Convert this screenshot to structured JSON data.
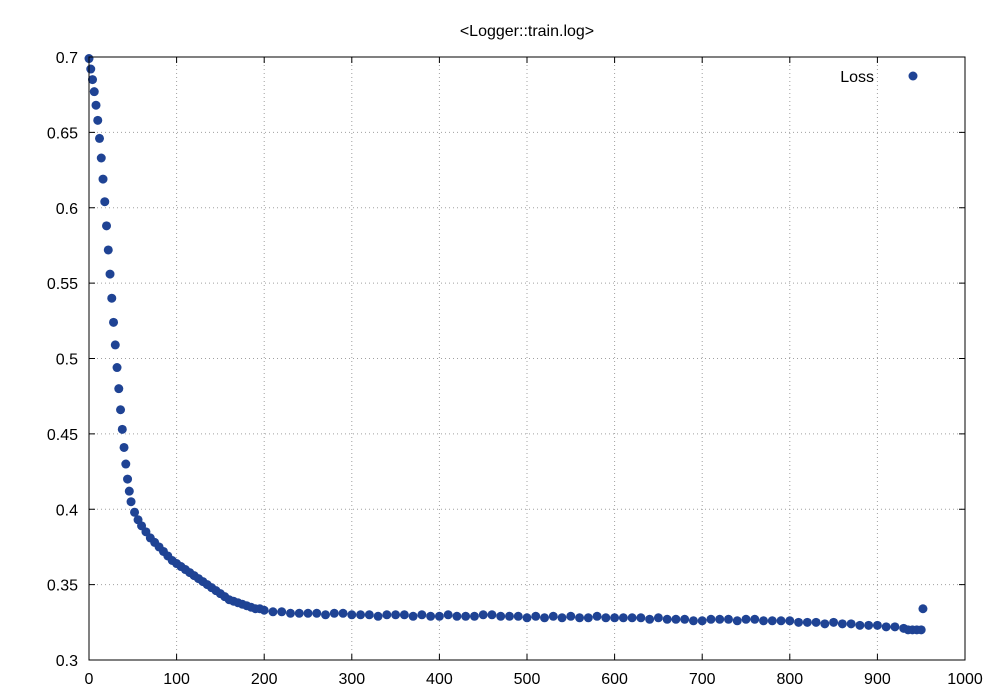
{
  "chart_data": {
    "type": "scatter",
    "title": "<Logger::train.log>",
    "xlabel": "",
    "ylabel": "",
    "xlim": [
      0,
      1000
    ],
    "ylim": [
      0.3,
      0.7
    ],
    "xticks": [
      0,
      100,
      200,
      300,
      400,
      500,
      600,
      700,
      800,
      900,
      1000
    ],
    "yticks": [
      0.3,
      0.35,
      0.4,
      0.45,
      0.5,
      0.55,
      0.6,
      0.65,
      0.7
    ],
    "xtick_labels": [
      "0",
      "100",
      "200",
      "300",
      "400",
      "500",
      "600",
      "700",
      "800",
      "900",
      "1000"
    ],
    "ytick_labels": [
      "0.3",
      "0.35",
      "0.4",
      "0.45",
      "0.5",
      "0.55",
      "0.6",
      "0.65",
      "0.7"
    ],
    "grid": true,
    "legend_position": "top-right",
    "series": [
      {
        "name": "Loss",
        "color": "#1f4394",
        "marker": "circle",
        "points": [
          [
            0,
            0.699
          ],
          [
            2,
            0.692
          ],
          [
            4,
            0.685
          ],
          [
            6,
            0.677
          ],
          [
            8,
            0.668
          ],
          [
            10,
            0.658
          ],
          [
            12,
            0.646
          ],
          [
            14,
            0.633
          ],
          [
            16,
            0.619
          ],
          [
            18,
            0.604
          ],
          [
            20,
            0.588
          ],
          [
            22,
            0.572
          ],
          [
            24,
            0.556
          ],
          [
            26,
            0.54
          ],
          [
            28,
            0.524
          ],
          [
            30,
            0.509
          ],
          [
            32,
            0.494
          ],
          [
            34,
            0.48
          ],
          [
            36,
            0.466
          ],
          [
            38,
            0.453
          ],
          [
            40,
            0.441
          ],
          [
            42,
            0.43
          ],
          [
            44,
            0.42
          ],
          [
            46,
            0.412
          ],
          [
            48,
            0.405
          ],
          [
            52,
            0.398
          ],
          [
            56,
            0.393
          ],
          [
            60,
            0.389
          ],
          [
            65,
            0.385
          ],
          [
            70,
            0.381
          ],
          [
            75,
            0.378
          ],
          [
            80,
            0.375
          ],
          [
            85,
            0.372
          ],
          [
            90,
            0.369
          ],
          [
            95,
            0.366
          ],
          [
            100,
            0.364
          ],
          [
            105,
            0.362
          ],
          [
            110,
            0.36
          ],
          [
            115,
            0.358
          ],
          [
            120,
            0.356
          ],
          [
            125,
            0.354
          ],
          [
            130,
            0.352
          ],
          [
            135,
            0.35
          ],
          [
            140,
            0.348
          ],
          [
            145,
            0.346
          ],
          [
            150,
            0.344
          ],
          [
            155,
            0.342
          ],
          [
            160,
            0.34
          ],
          [
            165,
            0.339
          ],
          [
            170,
            0.338
          ],
          [
            175,
            0.337
          ],
          [
            180,
            0.336
          ],
          [
            185,
            0.335
          ],
          [
            190,
            0.334
          ],
          [
            195,
            0.334
          ],
          [
            200,
            0.333
          ],
          [
            210,
            0.332
          ],
          [
            220,
            0.332
          ],
          [
            230,
            0.331
          ],
          [
            240,
            0.331
          ],
          [
            250,
            0.331
          ],
          [
            260,
            0.331
          ],
          [
            270,
            0.33
          ],
          [
            280,
            0.331
          ],
          [
            290,
            0.331
          ],
          [
            300,
            0.33
          ],
          [
            310,
            0.33
          ],
          [
            320,
            0.33
          ],
          [
            330,
            0.329
          ],
          [
            340,
            0.33
          ],
          [
            350,
            0.33
          ],
          [
            360,
            0.33
          ],
          [
            370,
            0.329
          ],
          [
            380,
            0.33
          ],
          [
            390,
            0.329
          ],
          [
            400,
            0.329
          ],
          [
            410,
            0.33
          ],
          [
            420,
            0.329
          ],
          [
            430,
            0.329
          ],
          [
            440,
            0.329
          ],
          [
            450,
            0.33
          ],
          [
            460,
            0.33
          ],
          [
            470,
            0.329
          ],
          [
            480,
            0.329
          ],
          [
            490,
            0.329
          ],
          [
            500,
            0.328
          ],
          [
            510,
            0.329
          ],
          [
            520,
            0.328
          ],
          [
            530,
            0.329
          ],
          [
            540,
            0.328
          ],
          [
            550,
            0.329
          ],
          [
            560,
            0.328
          ],
          [
            570,
            0.328
          ],
          [
            580,
            0.329
          ],
          [
            590,
            0.328
          ],
          [
            600,
            0.328
          ],
          [
            610,
            0.328
          ],
          [
            620,
            0.328
          ],
          [
            630,
            0.328
          ],
          [
            640,
            0.327
          ],
          [
            650,
            0.328
          ],
          [
            660,
            0.327
          ],
          [
            670,
            0.327
          ],
          [
            680,
            0.327
          ],
          [
            690,
            0.326
          ],
          [
            700,
            0.326
          ],
          [
            710,
            0.327
          ],
          [
            720,
            0.327
          ],
          [
            730,
            0.327
          ],
          [
            740,
            0.326
          ],
          [
            750,
            0.327
          ],
          [
            760,
            0.327
          ],
          [
            770,
            0.326
          ],
          [
            780,
            0.326
          ],
          [
            790,
            0.326
          ],
          [
            800,
            0.326
          ],
          [
            810,
            0.325
          ],
          [
            820,
            0.325
          ],
          [
            830,
            0.325
          ],
          [
            840,
            0.324
          ],
          [
            850,
            0.325
          ],
          [
            860,
            0.324
          ],
          [
            870,
            0.324
          ],
          [
            880,
            0.323
          ],
          [
            890,
            0.323
          ],
          [
            900,
            0.323
          ],
          [
            910,
            0.322
          ],
          [
            920,
            0.322
          ],
          [
            930,
            0.321
          ],
          [
            935,
            0.32
          ],
          [
            940,
            0.32
          ],
          [
            945,
            0.32
          ],
          [
            950,
            0.32
          ],
          [
            952,
            0.334
          ]
        ]
      }
    ]
  }
}
